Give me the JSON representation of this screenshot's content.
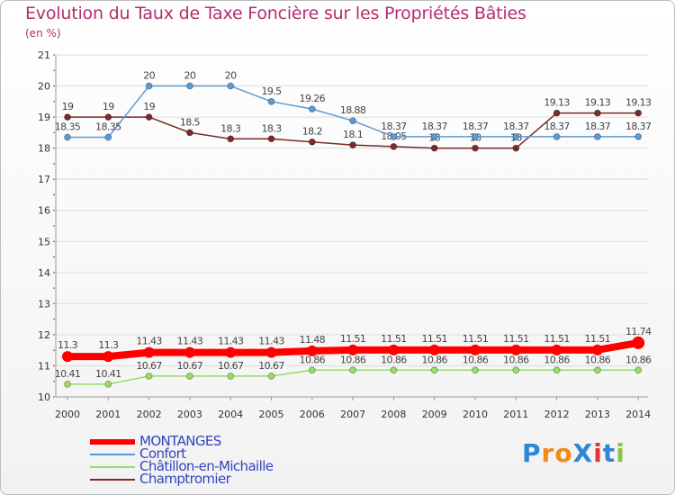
{
  "chart_data": {
    "type": "line",
    "title": "Evolution du Taux de Taxe Foncière sur les Propriétés Bâties",
    "unit": "(en %)",
    "xlabel": "",
    "ylabel": "",
    "ylim": [
      10,
      21
    ],
    "yticks": [
      "10",
      "11",
      "12",
      "13",
      "14",
      "15",
      "16",
      "17",
      "18",
      "19",
      "20",
      "21"
    ],
    "categories": [
      "2000",
      "2001",
      "2002",
      "2003",
      "2004",
      "2005",
      "2006",
      "2007",
      "2008",
      "2009",
      "2010",
      "2011",
      "2012",
      "2013",
      "2014"
    ],
    "series": [
      {
        "name": "MONTANGES",
        "color": "#ff0000",
        "values": [
          11.3,
          11.3,
          11.43,
          11.43,
          11.43,
          11.43,
          11.48,
          11.51,
          11.51,
          11.51,
          11.51,
          11.51,
          11.51,
          11.51,
          11.74
        ],
        "labels": [
          "11.3",
          "11.3",
          "11.43",
          "11.43",
          "11.43",
          "11.43",
          "11.48",
          "11.51",
          "11.51",
          "11.51",
          "11.51",
          "11.51",
          "11.51",
          "11.51",
          "11.74"
        ]
      },
      {
        "name": "Confort",
        "color": "#5b9bd5",
        "values": [
          18.35,
          18.35,
          20,
          20,
          20,
          19.5,
          19.26,
          18.88,
          18.37,
          18.37,
          18.37,
          18.37,
          18.37,
          18.37,
          18.37
        ],
        "labels": [
          "18.35",
          "18.35",
          "20",
          "20",
          "20",
          "19.5",
          "19.26",
          "18.88",
          "18.37",
          "18.37",
          "18.37",
          "18.37",
          "18.37",
          "18.37",
          "18.37"
        ]
      },
      {
        "name": "Châtillon-en-Michaille",
        "color": "#99dd66",
        "values": [
          10.41,
          10.41,
          10.67,
          10.67,
          10.67,
          10.67,
          10.86,
          10.86,
          10.86,
          10.86,
          10.86,
          10.86,
          10.86,
          10.86,
          10.86
        ],
        "labels": [
          "10.41",
          "10.41",
          "10.67",
          "10.67",
          "10.67",
          "10.67",
          "10.86",
          "10.86",
          "10.86",
          "10.86",
          "10.86",
          "10.86",
          "10.86",
          "10.86",
          "10.86"
        ]
      },
      {
        "name": "Champtromier",
        "color": "#7a2a2a",
        "values": [
          19,
          19,
          19,
          18.5,
          18.3,
          18.3,
          18.2,
          18.1,
          18.05,
          18,
          18,
          18,
          19.13,
          19.13,
          19.13
        ],
        "labels": [
          "19",
          "19",
          "19",
          "18.5",
          "18.3",
          "18.3",
          "18.2",
          "18.1",
          "18.05",
          "18",
          "18",
          "18",
          "19.13",
          "19.13",
          "19.13"
        ]
      }
    ],
    "legend": "bottom-left"
  },
  "logo": {
    "text": "ProXiti",
    "colors": [
      "#2e87d6",
      "#f28a1a",
      "#f28a1a",
      "#2e87d6",
      "#e63333",
      "#2e87d6",
      "#8bc34a"
    ]
  }
}
